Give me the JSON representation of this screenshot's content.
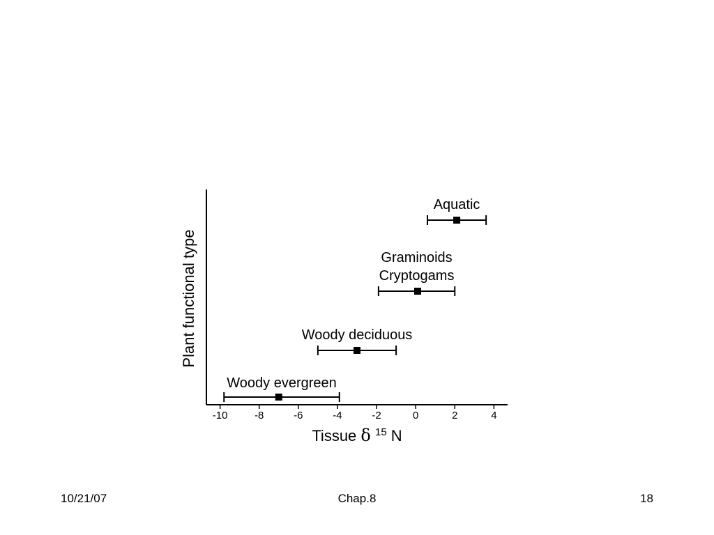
{
  "chart_data": {
    "type": "scatter",
    "title": "",
    "xlabel_main": "Tissue ",
    "xlabel_delta": "δ",
    "xlabel_superscript": "15",
    "xlabel_suffix": "N",
    "ylabel": "Plant functional type",
    "xlim": [
      -10.7,
      4.7
    ],
    "xticks": [
      -10,
      -8,
      -6,
      -4,
      -2,
      0,
      2,
      4
    ],
    "xtick_labels": [
      "-10",
      "-8",
      "-6",
      "-4",
      "-2",
      "0",
      "2",
      "4"
    ],
    "grid": false,
    "series": [
      {
        "label": "Woody evergreen",
        "label_line2": "",
        "mean": -7.0,
        "err_low": -9.8,
        "err_high": -3.9
      },
      {
        "label": "Woody deciduous",
        "label_line2": "",
        "mean": -3.0,
        "err_low": -5.0,
        "err_high": -1.0
      },
      {
        "label": "Graminoids",
        "label_line2": "Cryptogams",
        "mean": 0.1,
        "err_low": -1.9,
        "err_high": 2.0
      },
      {
        "label": "Aquatic",
        "label_line2": "",
        "mean": 2.1,
        "err_low": 0.6,
        "err_high": 3.6
      }
    ]
  },
  "footer": {
    "date": "10/21/07",
    "chapter": "Chap.8",
    "page": "18"
  }
}
